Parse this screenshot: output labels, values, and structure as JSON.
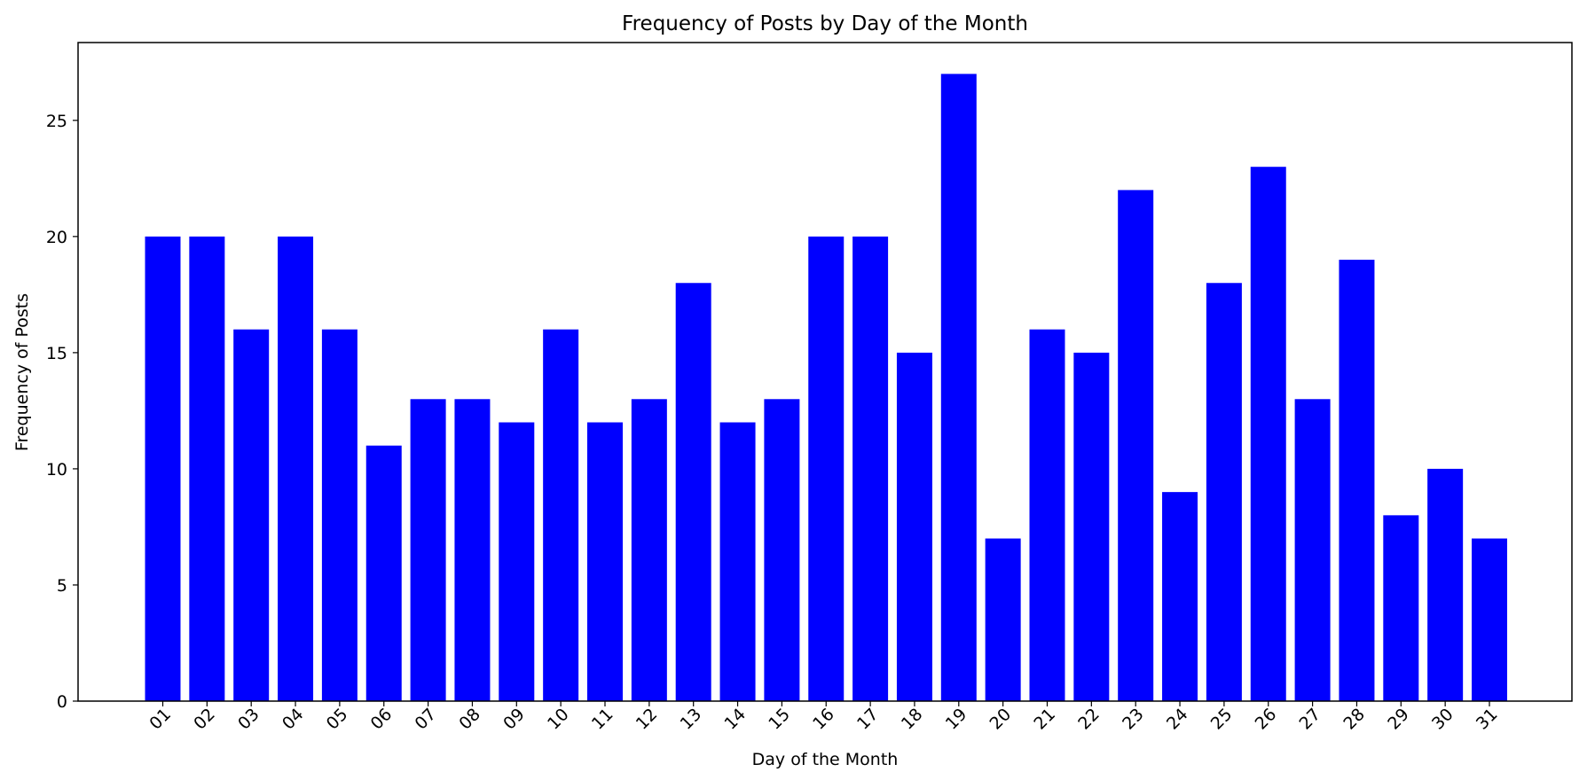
{
  "chart_data": {
    "type": "bar",
    "title": "Frequency of Posts by Day of the Month",
    "xlabel": "Day of the Month",
    "ylabel": "Frequency of Posts",
    "categories": [
      "01",
      "02",
      "03",
      "04",
      "05",
      "06",
      "07",
      "08",
      "09",
      "10",
      "11",
      "12",
      "13",
      "14",
      "15",
      "16",
      "17",
      "18",
      "19",
      "20",
      "21",
      "22",
      "23",
      "24",
      "25",
      "26",
      "27",
      "28",
      "29",
      "30",
      "31"
    ],
    "values": [
      20,
      20,
      16,
      20,
      16,
      11,
      13,
      13,
      12,
      16,
      12,
      13,
      18,
      12,
      13,
      20,
      20,
      15,
      27,
      7,
      16,
      15,
      22,
      9,
      18,
      23,
      13,
      19,
      8,
      10,
      7
    ],
    "ylim": [
      0,
      28.35
    ],
    "yticks": [
      0,
      5,
      10,
      15,
      20,
      25
    ],
    "bar_color": "#0000ff",
    "grid": false,
    "legend": false
  }
}
